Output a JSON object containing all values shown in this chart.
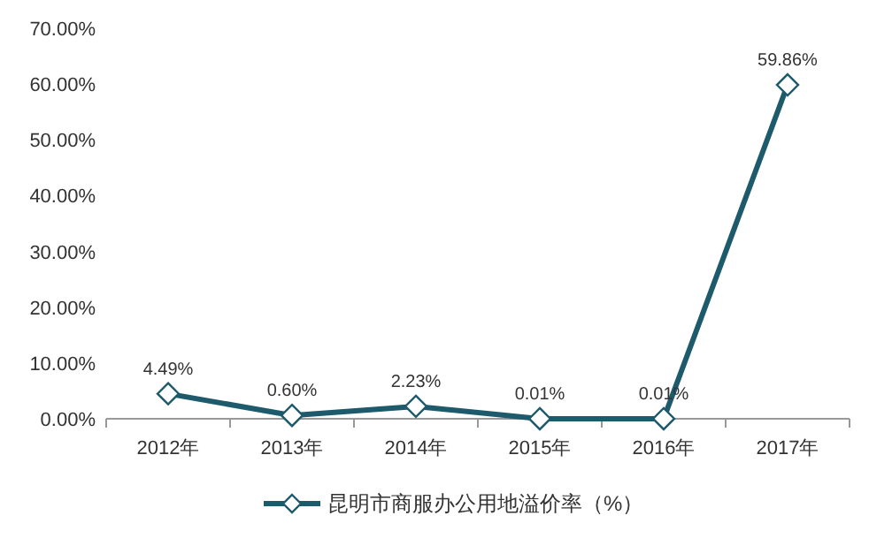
{
  "chart_data": {
    "type": "line",
    "categories": [
      "2012年",
      "2013年",
      "2014年",
      "2015年",
      "2016年",
      "2017年"
    ],
    "series": [
      {
        "name": "昆明市商服办公用地溢价率（%）",
        "color": "#1d5a6c",
        "values": [
          4.49,
          0.6,
          2.23,
          0.01,
          0.01,
          59.86
        ],
        "value_labels": [
          "4.49%",
          "0.60%",
          "2.23%",
          "0.01%",
          "0.01%",
          "59.86%"
        ]
      }
    ],
    "ylim": [
      0,
      70
    ],
    "yticks": [
      {
        "value": 0,
        "label": "0.00%"
      },
      {
        "value": 10,
        "label": "10.00%"
      },
      {
        "value": 20,
        "label": "20.00%"
      },
      {
        "value": 30,
        "label": "30.00%"
      },
      {
        "value": 40,
        "label": "40.00%"
      },
      {
        "value": 50,
        "label": "50.00%"
      },
      {
        "value": 60,
        "label": "60.00%"
      },
      {
        "value": 70,
        "label": "70.00%"
      }
    ],
    "marker": "diamond",
    "legend": "bottom",
    "grid": false
  }
}
